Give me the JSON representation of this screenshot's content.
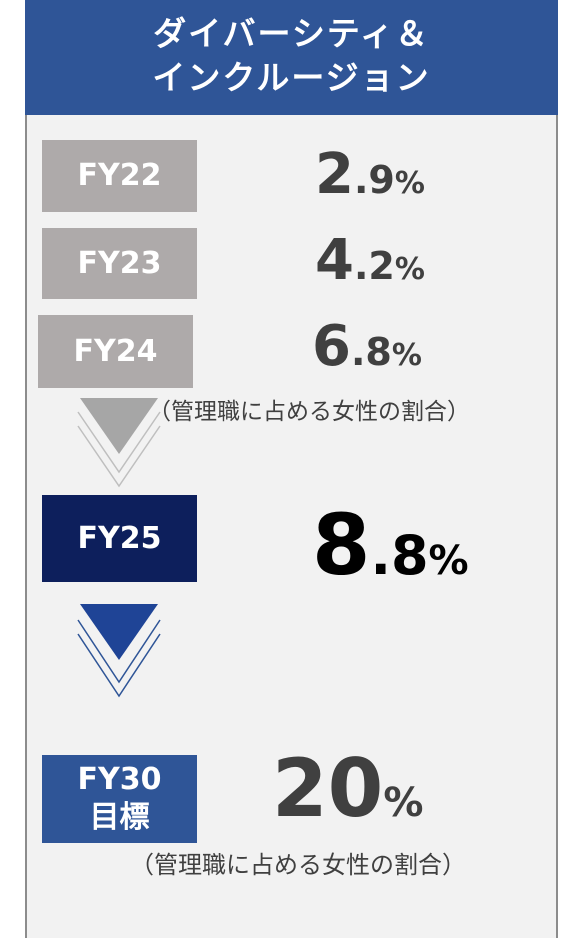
{
  "header": {
    "title_line1": "ダイバーシティ＆",
    "title_line2": "インクルージョン"
  },
  "rows": [
    {
      "label": "FY22",
      "integer": "2",
      "decimal": ".9",
      "unit": "%"
    },
    {
      "label": "FY23",
      "integer": "4",
      "decimal": ".2",
      "unit": "%"
    },
    {
      "label": "FY24",
      "integer": "6",
      "decimal": ".8",
      "unit": "%"
    },
    {
      "label": "FY25",
      "integer": "8",
      "decimal": ".8",
      "unit": "%"
    }
  ],
  "note": "（管理職に占める女性の割合）",
  "target": {
    "label_line1": "FY30",
    "label_line2": "目標",
    "value": "20",
    "unit": "%",
    "note": "（管理職に占める女性の割合）"
  }
}
